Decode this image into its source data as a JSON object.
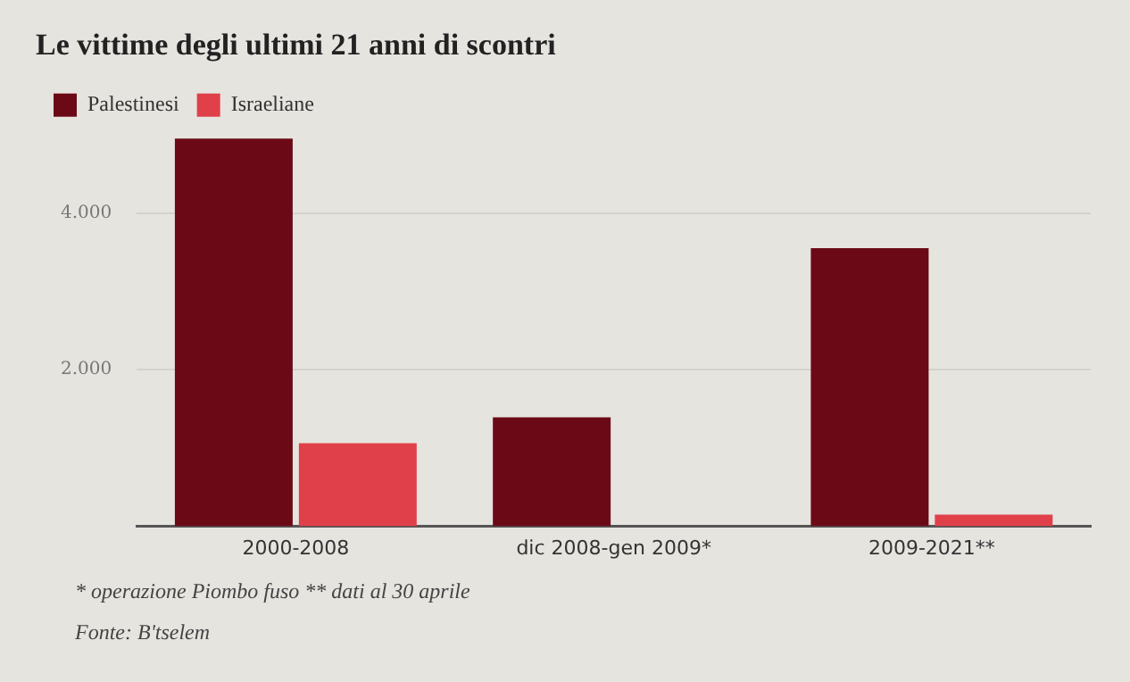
{
  "chart_data": {
    "type": "bar",
    "title": "Le vittime degli ultimi 21 anni di scontri",
    "categories": [
      "2000-2008",
      "dic 2008-gen 2009*",
      "2009-2021**"
    ],
    "series": [
      {
        "name": "Palestinesi",
        "color": "#6b0a16",
        "values": [
          4950,
          1390,
          3550
        ]
      },
      {
        "name": "Israeliane",
        "color": "#e0404a",
        "values": [
          1060,
          0,
          150
        ]
      }
    ],
    "ylim": [
      0,
      5000
    ],
    "yticks": [
      {
        "value": 2000,
        "label": "2.000"
      },
      {
        "value": 4000,
        "label": "4.000"
      }
    ],
    "grid": "y",
    "legend": "top left",
    "annotations": [
      "* operazione Piombo fuso ** dati al 30 aprile",
      "Fonte: B'tselem"
    ]
  }
}
